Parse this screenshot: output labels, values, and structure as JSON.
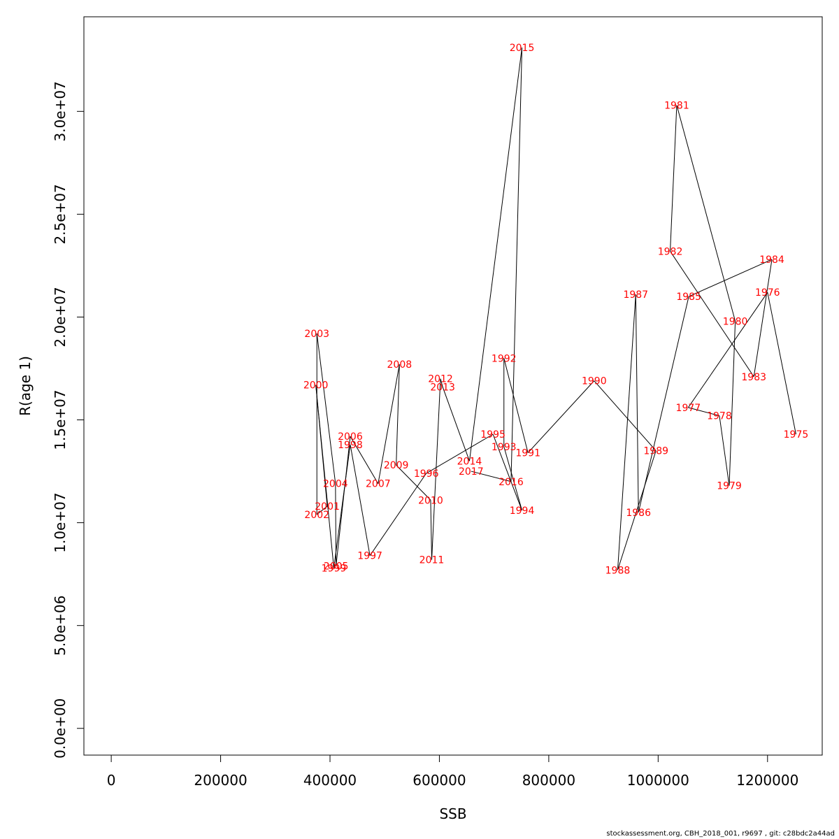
{
  "chart_data": {
    "type": "line",
    "title": "",
    "xlabel": "SSB",
    "ylabel": "R(age 1)",
    "xlim": [
      -50000,
      1300000
    ],
    "ylim": [
      -1300000,
      34600000
    ],
    "x_ticks": [
      0,
      200000,
      400000,
      600000,
      800000,
      1000000,
      1200000
    ],
    "x_tick_labels": [
      "0",
      "200000",
      "400000",
      "600000",
      "800000",
      "1000000",
      "1200000"
    ],
    "y_ticks": [
      0,
      5000000,
      10000000,
      15000000,
      20000000,
      25000000,
      30000000
    ],
    "y_tick_labels": [
      "0.0e+00",
      "5.0e+06",
      "1.0e+07",
      "1.5e+07",
      "2.0e+07",
      "2.5e+07",
      "3.0e+07"
    ],
    "grid": false,
    "legend": "none",
    "line_color": "#000000",
    "label_color": "#ff0000",
    "points": [
      {
        "year": "1975",
        "x": 1252000,
        "y": 14300000
      },
      {
        "year": "1976",
        "x": 1200000,
        "y": 21200000
      },
      {
        "year": "1977",
        "x": 1055000,
        "y": 15600000
      },
      {
        "year": "1978",
        "x": 1112000,
        "y": 15200000
      },
      {
        "year": "1979",
        "x": 1130000,
        "y": 11800000
      },
      {
        "year": "1980",
        "x": 1141000,
        "y": 19800000
      },
      {
        "year": "1981",
        "x": 1034000,
        "y": 30300000
      },
      {
        "year": "1982",
        "x": 1022000,
        "y": 23200000
      },
      {
        "year": "1983",
        "x": 1175000,
        "y": 17100000
      },
      {
        "year": "1984",
        "x": 1208000,
        "y": 22800000
      },
      {
        "year": "1985",
        "x": 1056000,
        "y": 21000000
      },
      {
        "year": "1986",
        "x": 964000,
        "y": 10500000
      },
      {
        "year": "1987",
        "x": 959000,
        "y": 21100000
      },
      {
        "year": "1988",
        "x": 926000,
        "y": 7700000
      },
      {
        "year": "1989",
        "x": 996000,
        "y": 13500000
      },
      {
        "year": "1990",
        "x": 883000,
        "y": 16900000
      },
      {
        "year": "1991",
        "x": 762000,
        "y": 13400000
      },
      {
        "year": "1992",
        "x": 718000,
        "y": 18000000
      },
      {
        "year": "1993",
        "x": 718000,
        "y": 13700000
      },
      {
        "year": "1994",
        "x": 751000,
        "y": 10600000
      },
      {
        "year": "1995",
        "x": 698000,
        "y": 14300000
      },
      {
        "year": "1996",
        "x": 576000,
        "y": 12400000
      },
      {
        "year": "1997",
        "x": 473000,
        "y": 8400000
      },
      {
        "year": "1998",
        "x": 437000,
        "y": 13800000
      },
      {
        "year": "1999",
        "x": 407000,
        "y": 7800000
      },
      {
        "year": "2000",
        "x": 374000,
        "y": 16700000
      },
      {
        "year": "2001",
        "x": 395000,
        "y": 10800000
      },
      {
        "year": "2002",
        "x": 376000,
        "y": 10400000
      },
      {
        "year": "2003",
        "x": 376000,
        "y": 19200000
      },
      {
        "year": "2004",
        "x": 410000,
        "y": 11900000
      },
      {
        "year": "2005",
        "x": 411000,
        "y": 7900000
      },
      {
        "year": "2006",
        "x": 437000,
        "y": 14200000
      },
      {
        "year": "2007",
        "x": 488000,
        "y": 11900000
      },
      {
        "year": "2008",
        "x": 527000,
        "y": 17700000
      },
      {
        "year": "2009",
        "x": 521000,
        "y": 12800000
      },
      {
        "year": "2010",
        "x": 584000,
        "y": 11100000
      },
      {
        "year": "2011",
        "x": 586000,
        "y": 8200000
      },
      {
        "year": "2012",
        "x": 602000,
        "y": 17000000
      },
      {
        "year": "2013",
        "x": 606000,
        "y": 16600000
      },
      {
        "year": "2014",
        "x": 655000,
        "y": 13000000
      },
      {
        "year": "2015",
        "x": 751000,
        "y": 33100000
      },
      {
        "year": "2016",
        "x": 731000,
        "y": 12000000
      },
      {
        "year": "2017",
        "x": 658000,
        "y": 12500000
      }
    ]
  },
  "footer_text": "stockassessment.org, CBH_2018_001, r9697 , git: c28bdc2a44ad"
}
